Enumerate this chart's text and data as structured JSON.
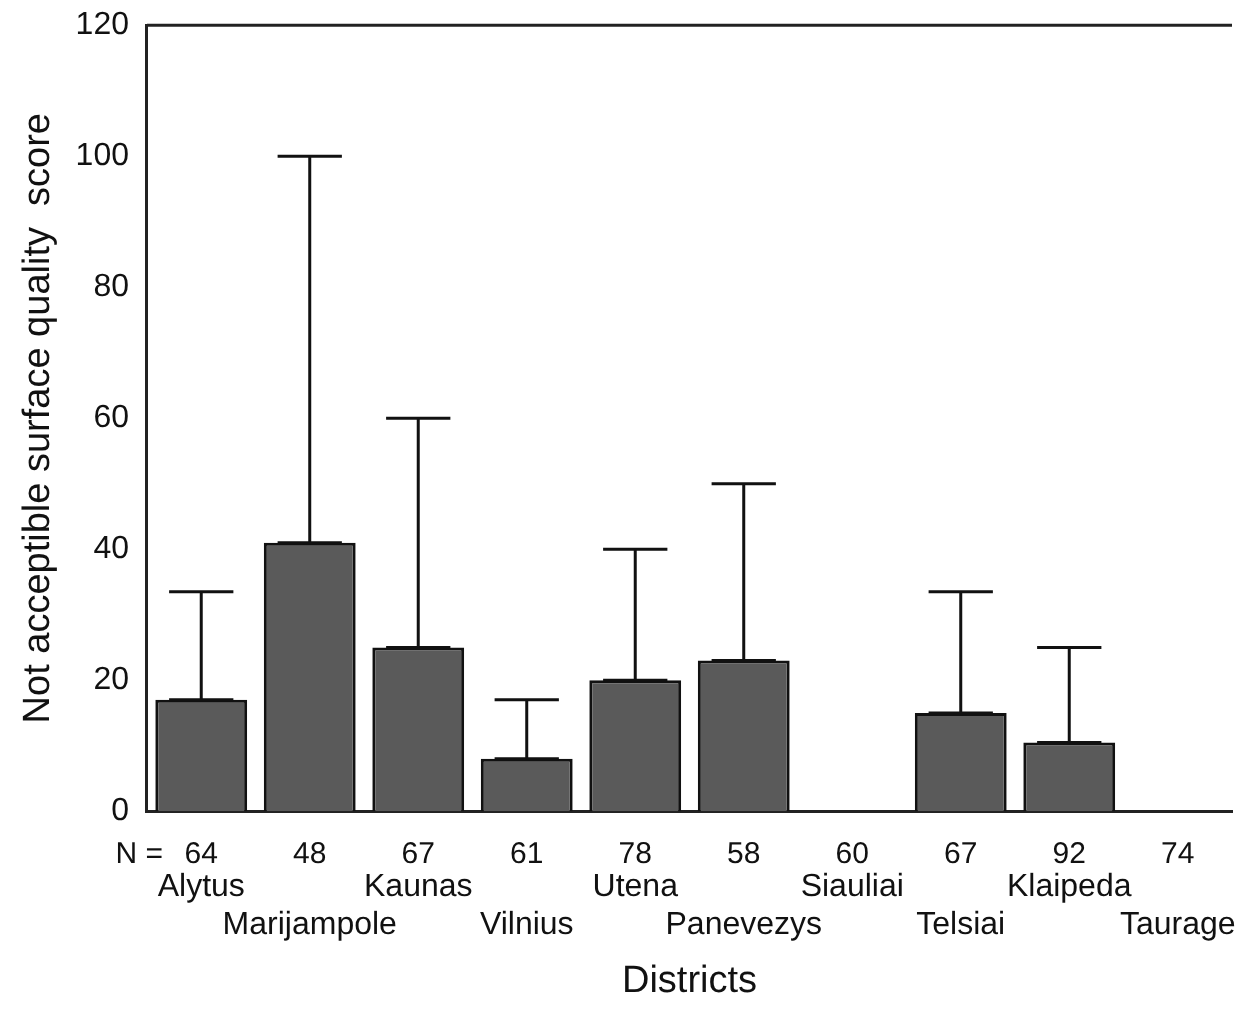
{
  "chart_data": {
    "type": "bar",
    "xlabel": "Districts",
    "ylabel": "Not acceptible surface quality  score",
    "categories": [
      "Alytus",
      "Marijampole",
      "Kaunas",
      "Vilnius",
      "Utena",
      "Panevezys",
      "Siauliai",
      "Telsiai",
      "Klaipeda",
      "Taurage"
    ],
    "values": [
      17,
      41,
      25,
      8,
      20,
      23,
      0,
      15,
      10.5,
      0
    ],
    "errors": [
      [
        17,
        33.5
      ],
      [
        41,
        100
      ],
      [
        25,
        60
      ],
      [
        8,
        17
      ],
      [
        20,
        40
      ],
      [
        23,
        50
      ],
      null,
      [
        15,
        33.5
      ],
      [
        10.5,
        25
      ],
      null
    ],
    "color": "#5a5a5a",
    "ylim": [
      0,
      120
    ],
    "yticks": [
      0,
      20,
      40,
      60,
      80,
      100,
      120
    ],
    "grid": false,
    "legend": false,
    "annotations": [
      "N =",
      "64",
      "48",
      "67",
      "61",
      "78",
      "58",
      "60",
      "67",
      "92",
      "74"
    ]
  }
}
